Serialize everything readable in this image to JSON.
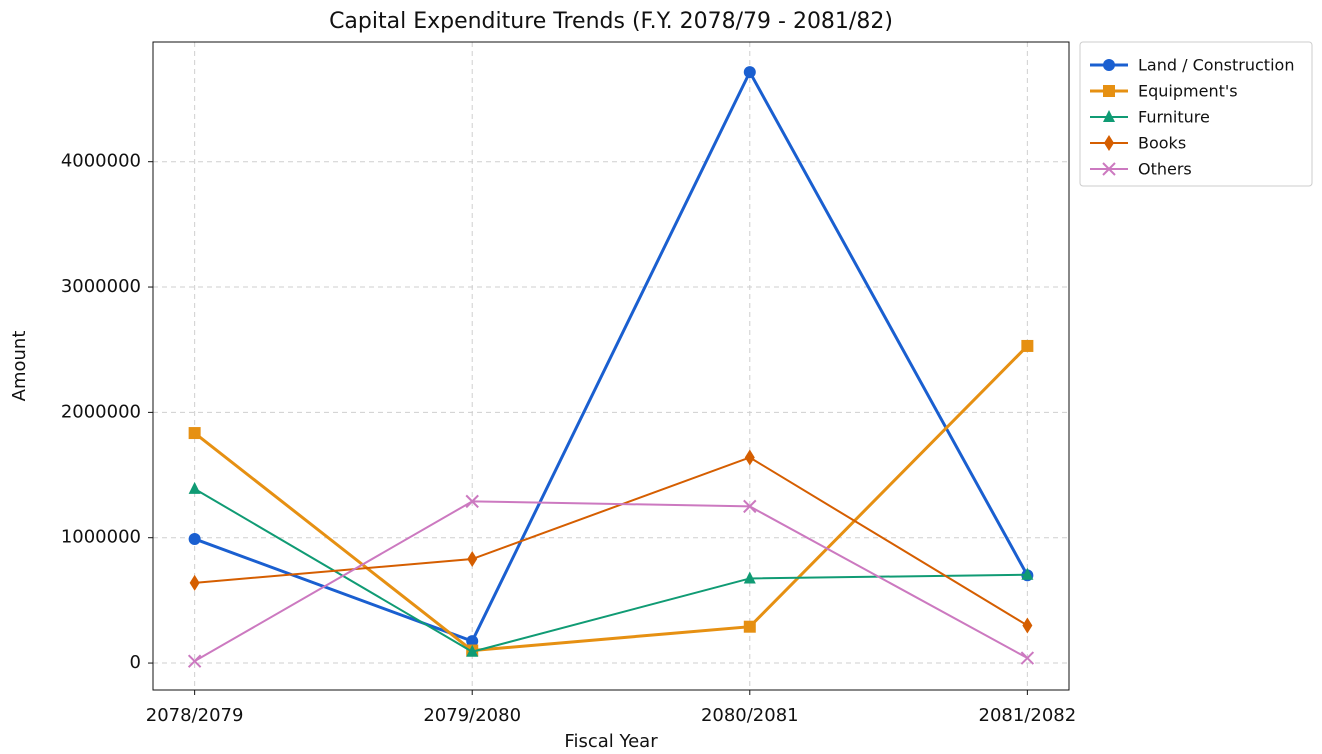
{
  "chart_data": {
    "type": "line",
    "title": "Capital Expenditure Trends (F.Y. 2078/79 - 2081/82)",
    "x_label": "Fiscal Year",
    "y_label": "Amount",
    "categories": [
      "2078/2079",
      "2079/2080",
      "2080/2081",
      "2081/2082"
    ],
    "series": [
      {
        "name": "Land / Construction",
        "color": "#1a5fd0",
        "marker": "circle",
        "values": [
          990000,
          175000,
          4715000,
          700000
        ]
      },
      {
        "name": "Equipment's",
        "color": "#e69012",
        "marker": "square",
        "values": [
          1835000,
          100000,
          290000,
          2530000
        ]
      },
      {
        "name": "Furniture",
        "color": "#109b74",
        "marker": "triangle",
        "values": [
          1390000,
          90000,
          675000,
          705000
        ]
      },
      {
        "name": "Books",
        "color": "#d55e00",
        "marker": "diamond",
        "values": [
          640000,
          830000,
          1640000,
          300000
        ]
      },
      {
        "name": "Others",
        "color": "#cc79c0",
        "marker": "x",
        "values": [
          15000,
          1290000,
          1250000,
          40000
        ]
      }
    ],
    "ylim": [
      -215000,
      4955000
    ],
    "yticks": [
      0,
      1000000,
      2000000,
      3000000,
      4000000
    ],
    "grid": true,
    "legend": "outside upper right"
  }
}
